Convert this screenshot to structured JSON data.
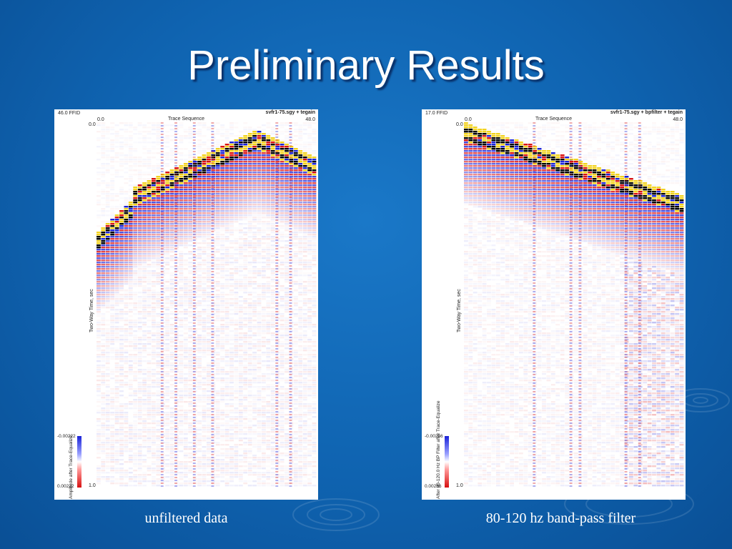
{
  "slide": {
    "title": "Preliminary Results"
  },
  "left_panel": {
    "ffid": "46.0 FFID",
    "title": "svfr1-75.sgy + tegain",
    "x_axis_label": "Trace Sequence",
    "x_start": "0.0",
    "x_end": "48.0",
    "y_axis_label": "Two-Way Time, sec",
    "y_start": "0.0",
    "y_end": "1.0",
    "colorbar_label": "Amplitude after Trace-Equalize",
    "colorbar_min": "-0.00222",
    "colorbar_max": "0.00222",
    "caption": "unfiltered data"
  },
  "right_panel": {
    "ffid": "17.0 FFID",
    "title": "svfr1-75.sgy + bpfilter + tegain",
    "x_axis_label": "Trace Sequence",
    "x_start": "0.0",
    "x_end": "48.0",
    "y_axis_label": "Two-Way Time, sec",
    "y_start": "0.0",
    "y_end": "1.0",
    "colorbar_label": "After 80-120.0 Hz BP Filter after Trace-Equalize",
    "colorbar_min": "-0.00256",
    "colorbar_max": "0.00256",
    "caption": "80-120 hz band-pass filter"
  },
  "colors": {
    "background": "#0f63b0",
    "positive": "#d81010",
    "negative": "#1a22d8",
    "peak_high": "#f2d21c",
    "peak_low": "#000000"
  }
}
